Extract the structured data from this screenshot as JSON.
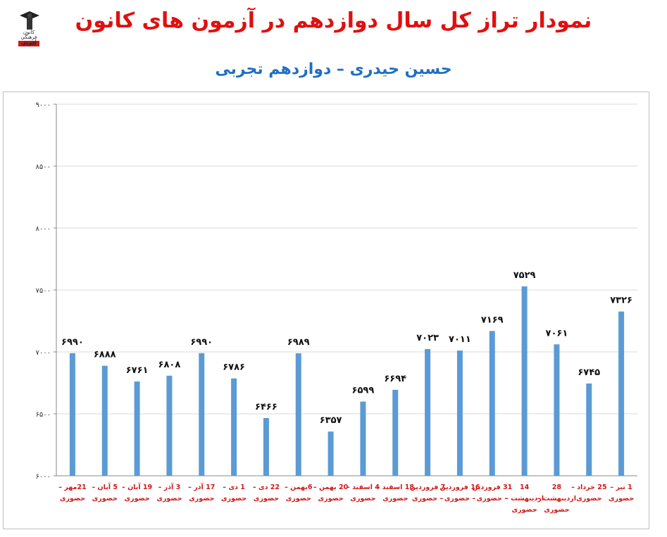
{
  "header": {
    "title": "نمودار تراز کل سال دوازدهم در آزمون های کانون",
    "subtitle": "حسین حیدری – دوازدهم تجربی",
    "logo_text": [
      "کانون",
      "فرهنگی",
      "آموزش",
      "قلم‌چی"
    ]
  },
  "colors": {
    "title": "#e01010",
    "subtitle": "#1f6fc5",
    "bar": "#5b9bd5",
    "category_label": "#d01818",
    "grid": "#d9d9d9"
  },
  "chart_data": {
    "type": "bar",
    "ylim": [
      6000,
      9000
    ],
    "yticks": [
      6000,
      6500,
      7000,
      7500,
      8000,
      8500,
      9000
    ],
    "ytick_labels": [
      "۶۰۰۰",
      "۶۵۰۰",
      "۷۰۰۰",
      "۷۵۰۰",
      "۸۰۰۰",
      "۸۵۰۰",
      "۹۰۰۰"
    ],
    "grid": true,
    "categories": [
      [
        "21مهر –",
        "حضوری"
      ],
      [
        "5 آبان –",
        "حضوری"
      ],
      [
        "19 آبان –",
        "حضوری"
      ],
      [
        "3 آذر –",
        "حضوری"
      ],
      [
        "17 آذر –",
        "حضوری"
      ],
      [
        "1 دی –",
        "حضوری"
      ],
      [
        "22 دی –",
        "حضوری"
      ],
      [
        "6بهمن –",
        "حضوری"
      ],
      [
        "20 بهمن –",
        "حضوری"
      ],
      [
        "4 اسفند –",
        "حضوری"
      ],
      [
        "18 اسفند –",
        "حضوری"
      ],
      [
        "7 فروردین",
        "– حضوری"
      ],
      [
        "16 فروردین",
        "– حضوری"
      ],
      [
        "31 فروردین",
        "– حضوری"
      ],
      [
        "14",
        "اردیبهشت –",
        "حضوری"
      ],
      [
        "28",
        "اردیبهشت –",
        "حضوری"
      ],
      [
        "25 خرداد –",
        "حضوری"
      ],
      [
        "1 تیر –",
        "حضوری"
      ]
    ],
    "values": [
      6990,
      6888,
      6761,
      6808,
      6990,
      6786,
      6466,
      6989,
      6357,
      6599,
      6694,
      7023,
      7011,
      7169,
      7529,
      7061,
      6745,
      7326
    ],
    "value_labels": [
      "۶۹۹۰",
      "۶۸۸۸",
      "۶۷۶۱",
      "۶۸۰۸",
      "۶۹۹۰",
      "۶۷۸۶",
      "۶۴۶۶",
      "۶۹۸۹",
      "۶۳۵۷",
      "۶۵۹۹",
      "۶۶۹۴",
      "۷۰۲۳",
      "۷۰۱۱",
      "۷۱۶۹",
      "۷۵۲۹",
      "۷۰۶۱",
      "۶۷۴۵",
      "۷۳۲۶"
    ]
  }
}
